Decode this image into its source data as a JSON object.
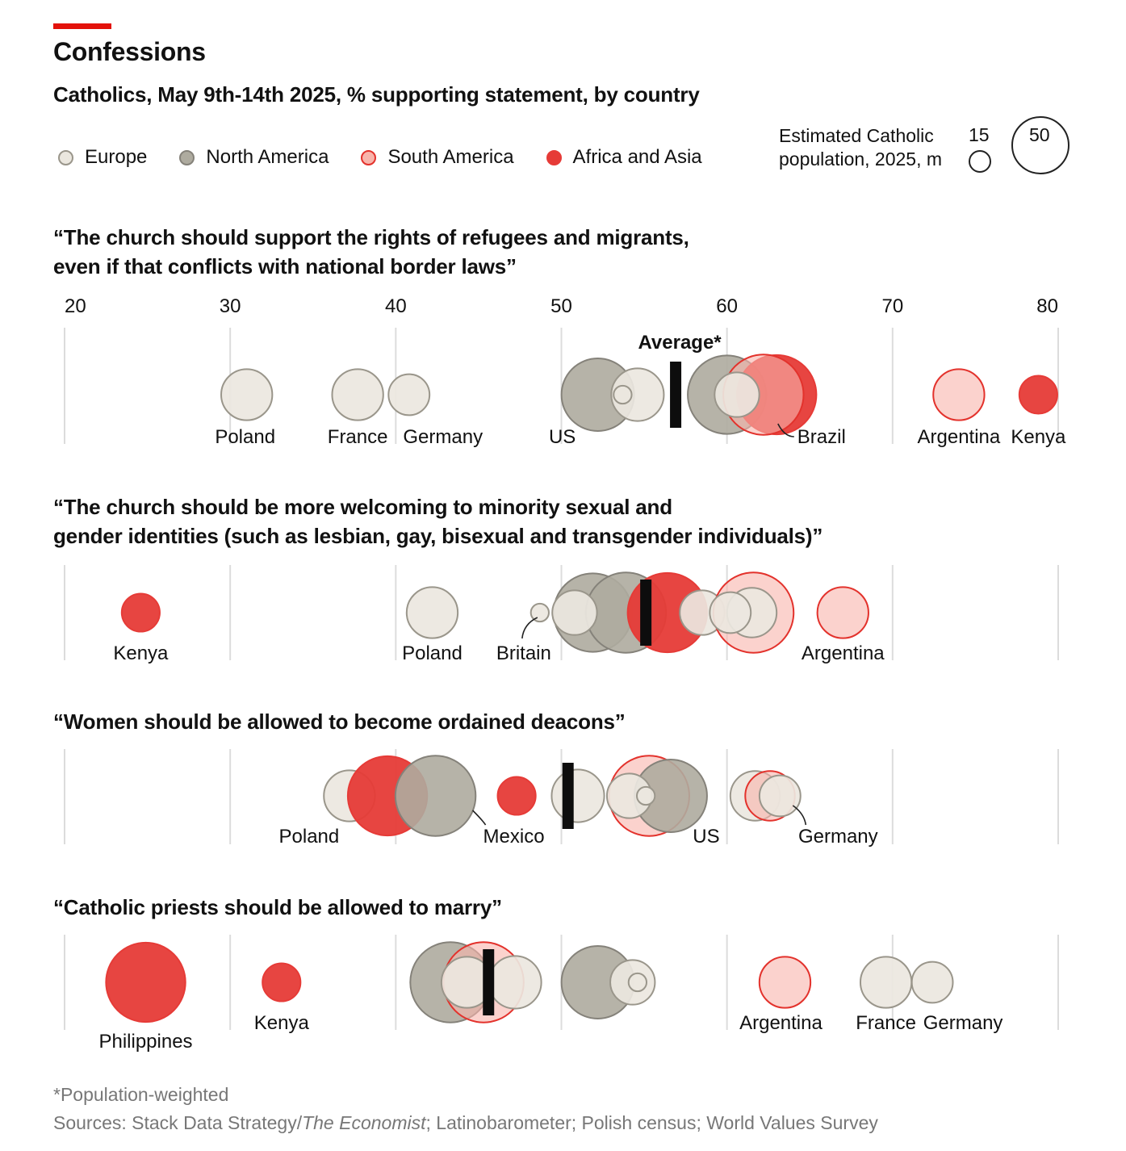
{
  "title": "Confessions",
  "subtitle": "Catholics, May 9th-14th 2025, % supporting statement, by country",
  "legend": [
    {
      "label": "Europe",
      "fill": "#ebe7df",
      "stroke": "#9a968b"
    },
    {
      "label": "North America",
      "fill": "#aeab9f",
      "stroke": "#85827a"
    },
    {
      "label": "South America",
      "fill": "#f8b4ab",
      "stroke": "#e3322c"
    },
    {
      "label": "Africa and Asia",
      "fill": "#e63b37",
      "stroke": "#e63b37"
    }
  ],
  "size_legend": {
    "title_line1": "Estimated Catholic",
    "title_line2": "population, 2025, m",
    "small_label": "15",
    "big_label": "50"
  },
  "chart_data": {
    "type": "scatter",
    "x_range": [
      20,
      80
    ],
    "ticks": [
      "20",
      "30",
      "40",
      "50",
      "60",
      "70",
      "80"
    ],
    "average_label": "Average*",
    "region_colors": {
      "europe": {
        "fill": "#ebe7df",
        "stroke": "#9a968b",
        "opacity": 0.92
      },
      "namerica": {
        "fill": "#aeab9f",
        "stroke": "#85827a",
        "opacity": 0.9
      },
      "samerica": {
        "fill": "#f8b4ab",
        "stroke": "#e3322c",
        "opacity": 0.6
      },
      "africa": {
        "fill": "#e63b37",
        "stroke": "#e63b37",
        "opacity": 0.95
      }
    },
    "questions": [
      {
        "id": "refugees",
        "title_line1": "“The church should support the rights of refugees and migrants,",
        "title_line2": "even if that conflicts with national border laws”",
        "average": 56.9,
        "points": [
          {
            "label": "Poland",
            "value": 31,
            "pop": 30,
            "region": "europe"
          },
          {
            "label": "France",
            "value": 37.7,
            "pop": 30,
            "region": "europe"
          },
          {
            "label": "Germany",
            "value": 40.8,
            "pop": 18,
            "region": "europe"
          },
          {
            "label": "US",
            "value": 52.2,
            "pop": 66,
            "region": "namerica"
          },
          {
            "label": "",
            "value": 54.6,
            "pop": 32,
            "region": "europe"
          },
          {
            "label": "",
            "value": 53.7,
            "pop": 2,
            "region": "europe"
          },
          {
            "label": "",
            "value": 60,
            "pop": 78,
            "region": "namerica"
          },
          {
            "label": "",
            "value": 63,
            "pop": 80,
            "region": "africa"
          },
          {
            "label": "Brazil",
            "value": 62.2,
            "pop": 82,
            "region": "samerica"
          },
          {
            "label": "",
            "value": 60.6,
            "pop": 22,
            "region": "europe"
          },
          {
            "label": "Argentina",
            "value": 74,
            "pop": 30,
            "region": "samerica"
          },
          {
            "label": "Kenya",
            "value": 78.8,
            "pop": 15,
            "region": "africa"
          }
        ]
      },
      {
        "id": "lgbt",
        "title_line1": "“The church should be more welcoming to minority sexual and",
        "title_line2": "gender identities (such as lesbian, gay, bisexual and transgender individuals)”",
        "average": 55.1,
        "points": [
          {
            "label": "Kenya",
            "value": 24.6,
            "pop": 15,
            "region": "africa"
          },
          {
            "label": "Poland",
            "value": 42.2,
            "pop": 30,
            "region": "europe"
          },
          {
            "label": "",
            "value": 51.9,
            "pop": 78,
            "region": "namerica"
          },
          {
            "label": "",
            "value": 53.9,
            "pop": 82,
            "region": "namerica"
          },
          {
            "label": "",
            "value": 56.4,
            "pop": 80,
            "region": "africa"
          },
          {
            "label": "",
            "value": 50.8,
            "pop": 22,
            "region": "europe"
          },
          {
            "label": "Britain",
            "value": 48.7,
            "pop": 2,
            "region": "europe"
          },
          {
            "label": "",
            "value": 58.5,
            "pop": 22,
            "region": "europe"
          },
          {
            "label": "",
            "value": 61.6,
            "pop": 82,
            "region": "samerica"
          },
          {
            "label": "",
            "value": 61.5,
            "pop": 28,
            "region": "europe"
          },
          {
            "label": "",
            "value": 60.2,
            "pop": 18,
            "region": "europe"
          },
          {
            "label": "Argentina",
            "value": 67,
            "pop": 30,
            "region": "samerica"
          }
        ]
      },
      {
        "id": "deacons",
        "title_line1": "“Women should be allowed to become ordained deacons”",
        "title_line2": "",
        "average": 50.4,
        "points": [
          {
            "label": "Poland",
            "value": 37.2,
            "pop": 30,
            "region": "europe"
          },
          {
            "label": "",
            "value": 39.5,
            "pop": 80,
            "region": "africa"
          },
          {
            "label": "Mexico",
            "value": 42.4,
            "pop": 82,
            "region": "namerica"
          },
          {
            "label": "",
            "value": 47.3,
            "pop": 15,
            "region": "africa"
          },
          {
            "label": "",
            "value": 51,
            "pop": 32,
            "region": "europe"
          },
          {
            "label": "",
            "value": 55.3,
            "pop": 82,
            "region": "samerica"
          },
          {
            "label": "US",
            "value": 56.6,
            "pop": 66,
            "region": "namerica"
          },
          {
            "label": "",
            "value": 54.1,
            "pop": 22,
            "region": "europe"
          },
          {
            "label": "",
            "value": 55.1,
            "pop": 2,
            "region": "europe"
          },
          {
            "label": "",
            "value": 61.7,
            "pop": 28,
            "region": "europe"
          },
          {
            "label": "",
            "value": 62.6,
            "pop": 28,
            "region": "samerica"
          },
          {
            "label": "Germany",
            "value": 63.2,
            "pop": 18,
            "region": "europe"
          }
        ]
      },
      {
        "id": "marry",
        "title_line1": "“Catholic priests should be allowed to marry”",
        "title_line2": "",
        "average": 45.6,
        "points": [
          {
            "label": "Philippines",
            "value": 24.9,
            "pop": 80,
            "region": "africa"
          },
          {
            "label": "Kenya",
            "value": 33.1,
            "pop": 15,
            "region": "africa"
          },
          {
            "label": "",
            "value": 43.3,
            "pop": 82,
            "region": "namerica"
          },
          {
            "label": "",
            "value": 45.3,
            "pop": 82,
            "region": "samerica"
          },
          {
            "label": "",
            "value": 44.3,
            "pop": 30,
            "region": "europe"
          },
          {
            "label": "",
            "value": 47.2,
            "pop": 32,
            "region": "europe"
          },
          {
            "label": "",
            "value": 52.2,
            "pop": 66,
            "region": "namerica"
          },
          {
            "label": "",
            "value": 54.3,
            "pop": 22,
            "region": "europe"
          },
          {
            "label": "",
            "value": 54.6,
            "pop": 2,
            "region": "europe"
          },
          {
            "label": "Argentina",
            "value": 63.5,
            "pop": 30,
            "region": "samerica"
          },
          {
            "label": "France",
            "value": 69.6,
            "pop": 30,
            "region": "europe"
          },
          {
            "label": "Germany",
            "value": 72.4,
            "pop": 18,
            "region": "europe"
          }
        ]
      }
    ]
  },
  "footnote": "*Population-weighted",
  "sources_prefix": "Sources: Stack Data Strategy/",
  "sources_italic": "The Economist",
  "sources_suffix": "; Latinobarometer; Polish census; World Values Survey"
}
